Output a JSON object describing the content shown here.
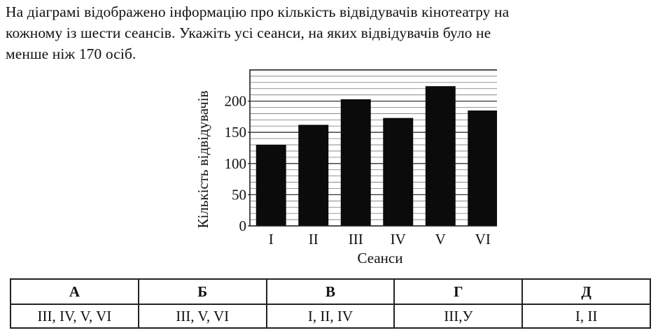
{
  "question": {
    "line1": "На діаграмі відображено інформацію про кількість відвідувачів кінотеатру на",
    "line2": "кожному із шести сеансів. Укажіть усі сеанси, на яких відвідувачів було не",
    "line3": "менше ніж 170 осіб."
  },
  "chart_data": {
    "type": "bar",
    "categories": [
      "I",
      "II",
      "III",
      "IV",
      "V",
      "VI"
    ],
    "values": [
      130,
      162,
      203,
      173,
      224,
      185
    ],
    "xlabel": "Сеанси",
    "ylabel": "Кількість відвідувачів",
    "ylim": [
      0,
      250
    ],
    "yticks": [
      0,
      50,
      100,
      150,
      200
    ],
    "grid_step": 10,
    "grid": true,
    "legend": "none"
  },
  "answers": {
    "headers": [
      "А",
      "Б",
      "В",
      "Г",
      "Д"
    ],
    "values": [
      "III, IV, V, VI",
      "III, V, VI",
      "I, II, IV",
      "III,У",
      "I, II"
    ]
  }
}
